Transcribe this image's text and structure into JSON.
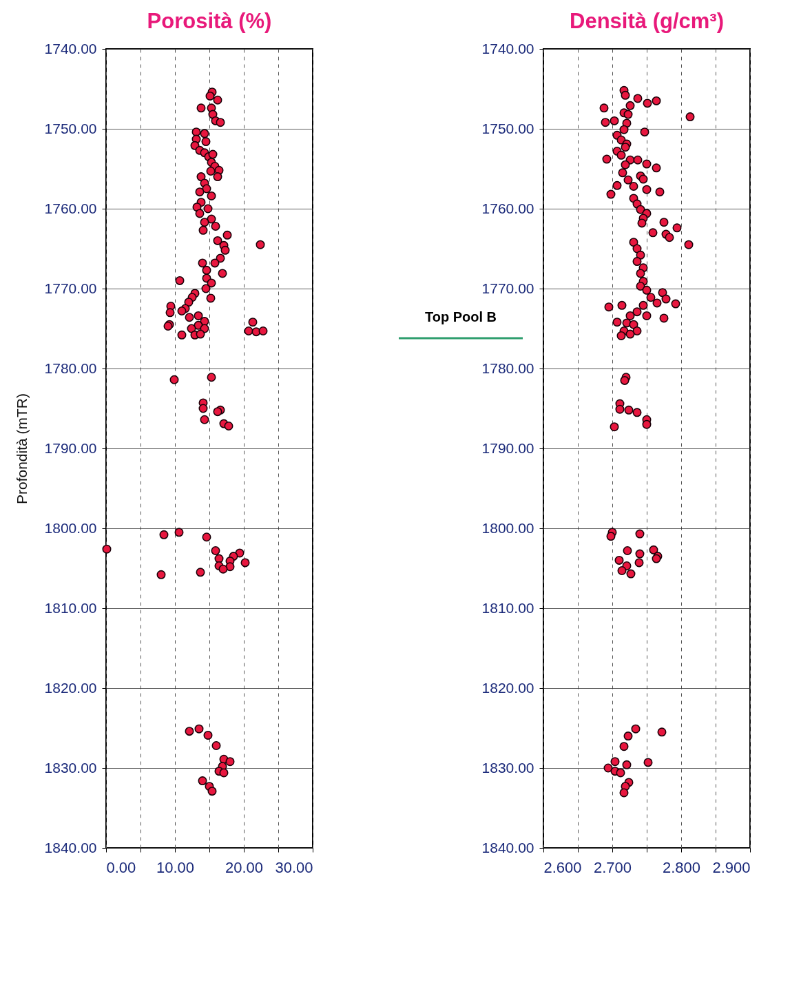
{
  "chart_data": [
    {
      "type": "scatter",
      "title": "Porosità (%)",
      "ylabel": "Profondità (mTR)",
      "color": "#e8173f",
      "marker": "circle",
      "grid": true,
      "x": [
        15.4,
        15.1,
        16.2,
        13.8,
        15.3,
        15.5,
        15.9,
        16.6,
        13.1,
        14.3,
        13.1,
        14.5,
        12.9,
        13.6,
        14.3,
        14.9,
        15.5,
        15.3,
        15.8,
        16.4,
        15.2,
        16.2,
        13.8,
        14.3,
        14.6,
        13.6,
        15.3,
        13.8,
        13.2,
        14.8,
        13.6,
        15.3,
        14.3,
        15.9,
        14.1,
        17.6,
        16.2,
        17.1,
        17.3,
        16.6,
        14.0,
        15.8,
        16.9,
        14.6,
        14.6,
        15.3,
        14.5,
        12.9,
        15.2,
        12.5,
        12.0,
        11.5,
        11.0,
        13.4,
        12.1,
        14.3,
        13.4,
        12.4,
        14.3,
        12.9,
        11.0,
        13.7,
        10.7,
        9.4,
        9.3,
        9.2,
        9.0,
        22.4,
        21.3,
        20.7,
        21.8,
        22.8,
        15.3,
        9.9,
        14.1,
        14.1,
        16.6,
        16.2,
        14.3,
        17.1,
        17.8,
        10.6,
        8.4,
        14.6,
        0.1,
        15.9,
        19.4,
        18.5,
        16.4,
        18.0,
        20.2,
        16.4,
        18.0,
        17.0,
        13.7,
        8.0,
        12.1,
        13.5,
        14.8,
        16.0,
        17.1,
        18.0,
        16.9,
        16.4,
        17.1,
        14.0,
        15.0,
        15.4
      ],
      "values": [
        1745.4,
        1745.9,
        1746.4,
        1747.4,
        1747.4,
        1748.2,
        1749.0,
        1749.2,
        1750.4,
        1750.6,
        1751.3,
        1751.6,
        1752.1,
        1752.7,
        1753.0,
        1753.5,
        1753.2,
        1754.2,
        1754.7,
        1755.2,
        1755.3,
        1756.0,
        1756.0,
        1756.8,
        1757.5,
        1757.9,
        1758.4,
        1759.2,
        1759.8,
        1760.0,
        1760.6,
        1761.3,
        1761.7,
        1762.2,
        1762.7,
        1763.3,
        1764.0,
        1764.6,
        1765.2,
        1766.2,
        1766.8,
        1766.8,
        1768.1,
        1767.7,
        1768.7,
        1769.3,
        1770.0,
        1770.6,
        1771.2,
        1771.1,
        1771.7,
        1772.5,
        1772.8,
        1773.4,
        1773.6,
        1774.1,
        1774.6,
        1775.0,
        1775.0,
        1775.8,
        1775.8,
        1775.7,
        1769.0,
        1772.2,
        1773.0,
        1774.5,
        1774.7,
        1764.5,
        1774.2,
        1775.3,
        1775.4,
        1775.3,
        1781.1,
        1781.4,
        1784.3,
        1785.0,
        1785.2,
        1785.4,
        1786.4,
        1786.9,
        1787.2,
        1800.5,
        1800.8,
        1801.1,
        1802.6,
        1802.8,
        1803.1,
        1803.5,
        1803.8,
        1804.1,
        1804.3,
        1804.7,
        1804.8,
        1805.1,
        1805.5,
        1805.8,
        1825.4,
        1825.1,
        1825.9,
        1827.2,
        1828.9,
        1829.2,
        1829.8,
        1830.4,
        1830.6,
        1831.6,
        1832.3,
        1832.9
      ],
      "xlim": [
        0,
        30
      ],
      "xticks": [
        {
          "value": 0,
          "label": "0.00"
        },
        {
          "value": 5,
          "label": null
        },
        {
          "value": 10,
          "label": "10.00"
        },
        {
          "value": 15,
          "label": null
        },
        {
          "value": 20,
          "label": "20.00"
        },
        {
          "value": 25,
          "label": null
        },
        {
          "value": 30,
          "label": "30.00"
        }
      ],
      "ylim": [
        1840,
        1740
      ],
      "yticks": [
        {
          "value": 1740,
          "label": "1740.00"
        },
        {
          "value": 1750,
          "label": "1750.00"
        },
        {
          "value": 1760,
          "label": "1760.00"
        },
        {
          "value": 1770,
          "label": "1770.00"
        },
        {
          "value": 1780,
          "label": "1780.00"
        },
        {
          "value": 1790,
          "label": "1790.00"
        },
        {
          "value": 1800,
          "label": "1800.00"
        },
        {
          "value": 1810,
          "label": "1810.00"
        },
        {
          "value": 1820,
          "label": "1820.00"
        },
        {
          "value": 1830,
          "label": "1830.00"
        },
        {
          "value": 1840,
          "label": "1840.00"
        }
      ]
    },
    {
      "type": "scatter",
      "title": "Densità (g/cm³)",
      "color": "#e8173f",
      "marker": "circle",
      "grid": true,
      "x": [
        2.717,
        2.719,
        2.737,
        2.751,
        2.764,
        2.688,
        2.726,
        2.717,
        2.723,
        2.813,
        2.69,
        2.703,
        2.721,
        2.717,
        2.747,
        2.707,
        2.713,
        2.721,
        2.719,
        2.707,
        2.692,
        2.713,
        2.726,
        2.737,
        2.75,
        2.764,
        2.719,
        2.715,
        2.741,
        2.745,
        2.723,
        2.707,
        2.731,
        2.75,
        2.769,
        2.698,
        2.731,
        2.736,
        2.741,
        2.75,
        2.745,
        2.743,
        2.775,
        2.794,
        2.778,
        2.783,
        2.759,
        2.811,
        2.731,
        2.736,
        2.741,
        2.736,
        2.745,
        2.741,
        2.745,
        2.741,
        2.75,
        2.773,
        2.778,
        2.756,
        2.765,
        2.792,
        2.695,
        2.714,
        2.745,
        2.736,
        2.726,
        2.75,
        2.775,
        2.707,
        2.721,
        2.731,
        2.736,
        2.717,
        2.713,
        2.726,
        2.72,
        2.718,
        2.711,
        2.711,
        2.724,
        2.736,
        2.75,
        2.75,
        2.703,
        2.7,
        2.698,
        2.74,
        2.722,
        2.76,
        2.74,
        2.766,
        2.71,
        2.764,
        2.721,
        2.739,
        2.714,
        2.727,
        2.734,
        2.772,
        2.723,
        2.717,
        2.704,
        2.752,
        2.721,
        2.694,
        2.704,
        2.712,
        2.724,
        2.719,
        2.717
      ],
      "values": [
        1745.2,
        1745.8,
        1746.2,
        1746.8,
        1746.5,
        1747.4,
        1747.1,
        1748.0,
        1748.2,
        1748.5,
        1749.2,
        1749.0,
        1749.3,
        1750.1,
        1750.4,
        1750.8,
        1751.4,
        1751.9,
        1752.3,
        1752.8,
        1753.8,
        1753.3,
        1753.9,
        1753.9,
        1754.4,
        1754.9,
        1754.5,
        1755.5,
        1755.9,
        1756.3,
        1756.4,
        1757.1,
        1757.2,
        1757.6,
        1757.9,
        1758.2,
        1758.7,
        1759.4,
        1760.1,
        1760.6,
        1761.2,
        1761.8,
        1761.7,
        1762.4,
        1763.2,
        1763.6,
        1763.0,
        1764.5,
        1764.2,
        1765.0,
        1765.8,
        1766.6,
        1767.4,
        1768.1,
        1769.1,
        1769.7,
        1770.2,
        1770.5,
        1771.3,
        1771.1,
        1771.8,
        1771.9,
        1772.3,
        1772.1,
        1772.1,
        1772.9,
        1773.4,
        1773.4,
        1773.7,
        1774.2,
        1774.3,
        1774.5,
        1775.3,
        1775.3,
        1775.9,
        1775.7,
        1781.1,
        1781.5,
        1784.4,
        1785.1,
        1785.2,
        1785.5,
        1786.4,
        1787.0,
        1787.3,
        1800.5,
        1801.0,
        1800.7,
        1802.8,
        1802.7,
        1803.2,
        1803.5,
        1804.0,
        1803.8,
        1804.7,
        1804.3,
        1805.3,
        1805.7,
        1825.1,
        1825.5,
        1826.0,
        1827.3,
        1829.2,
        1829.3,
        1829.6,
        1830.0,
        1830.4,
        1830.6,
        1831.8,
        1832.3,
        1833.1
      ],
      "xlim": [
        2.6,
        2.9
      ],
      "xticks": [
        {
          "value": 2.6,
          "label": "2.600"
        },
        {
          "value": 2.65,
          "label": null
        },
        {
          "value": 2.7,
          "label": "2.700"
        },
        {
          "value": 2.75,
          "label": null
        },
        {
          "value": 2.8,
          "label": "2.800"
        },
        {
          "value": 2.85,
          "label": null
        },
        {
          "value": 2.9,
          "label": "2.900"
        }
      ],
      "ylim": [
        1840,
        1740
      ],
      "yticks": [
        {
          "value": 1740,
          "label": "1740.00"
        },
        {
          "value": 1750,
          "label": "1750.00"
        },
        {
          "value": 1760,
          "label": "1760.00"
        },
        {
          "value": 1770,
          "label": "1770.00"
        },
        {
          "value": 1780,
          "label": "1780.00"
        },
        {
          "value": 1790,
          "label": "1790.00"
        },
        {
          "value": 1800,
          "label": "1800.00"
        },
        {
          "value": 1810,
          "label": "1810.00"
        },
        {
          "value": 1820,
          "label": "1820.00"
        },
        {
          "value": 1830,
          "label": "1830.00"
        },
        {
          "value": 1840,
          "label": "1840.00"
        }
      ],
      "ref_lines": [
        {
          "axis": "y",
          "value": 1776.2,
          "label": "Top Pool B",
          "color": "#2e9e6e"
        }
      ]
    }
  ]
}
